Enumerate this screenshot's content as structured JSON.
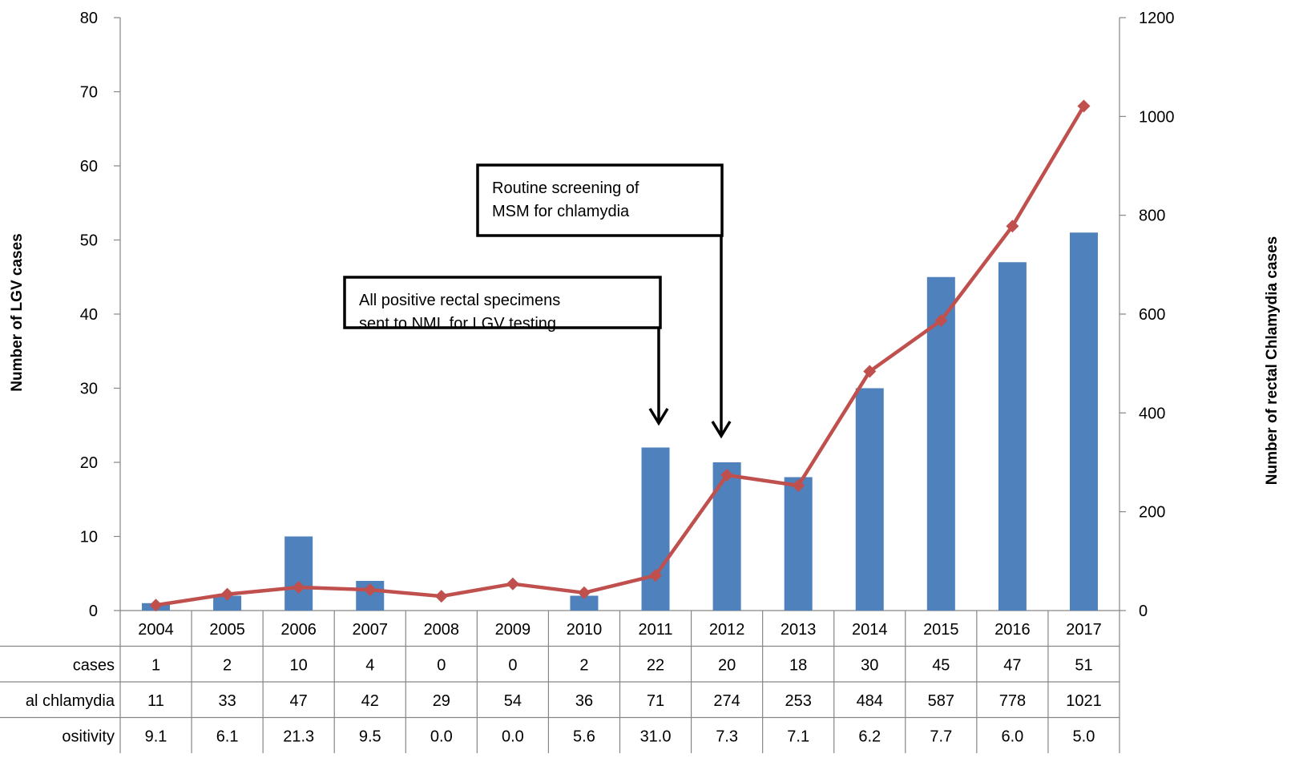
{
  "chart_data": {
    "type": "bar",
    "categories": [
      "2004",
      "2005",
      "2006",
      "2007",
      "2008",
      "2009",
      "2010",
      "2011",
      "2012",
      "2013",
      "2014",
      "2015",
      "2016",
      "2017"
    ],
    "series": [
      {
        "name": "LGV cases",
        "type": "bar",
        "axis": "left",
        "color": "#4F81BD",
        "values": [
          1,
          2,
          10,
          4,
          0,
          0,
          2,
          22,
          20,
          18,
          30,
          45,
          47,
          51
        ]
      },
      {
        "name": "Rectal chlamydia",
        "type": "line",
        "axis": "right",
        "color": "#C0504D",
        "values": [
          11,
          33,
          47,
          42,
          29,
          54,
          36,
          71,
          274,
          253,
          484,
          587,
          778,
          1021
        ]
      }
    ],
    "ylabel": "Number of LGV cases",
    "ylabel_right": "Number of rectal Chlamydia cases",
    "ylim": [
      0,
      80
    ],
    "ylim_right": [
      0,
      1200
    ],
    "yticks": [
      0,
      10,
      20,
      30,
      40,
      50,
      60,
      70,
      80
    ],
    "yticks_right": [
      0,
      200,
      400,
      600,
      800,
      1000,
      1200
    ],
    "grid": false,
    "data_table": {
      "row_labels": [
        "cases",
        "al chlamydia",
        "ositivity"
      ],
      "rows": [
        [
          "1",
          "2",
          "10",
          "4",
          "0",
          "0",
          "2",
          "22",
          "20",
          "18",
          "30",
          "45",
          "47",
          "51"
        ],
        [
          "11",
          "33",
          "47",
          "42",
          "29",
          "54",
          "36",
          "71",
          "274",
          "253",
          "484",
          "587",
          "778",
          "1021"
        ],
        [
          "9.1",
          "6.1",
          "21.3",
          "9.5",
          "0.0",
          "0.0",
          "5.6",
          "31.0",
          "7.3",
          "7.1",
          "6.2",
          "7.7",
          "6.0",
          "5.0"
        ]
      ]
    },
    "annotations": [
      {
        "lines": [
          "All positive rectal specimens",
          "sent to NML for LGV testing"
        ],
        "points_to": "2011"
      },
      {
        "lines": [
          "Routine screening of",
          "MSM for chlamydia"
        ],
        "points_to": "2012"
      }
    ]
  }
}
